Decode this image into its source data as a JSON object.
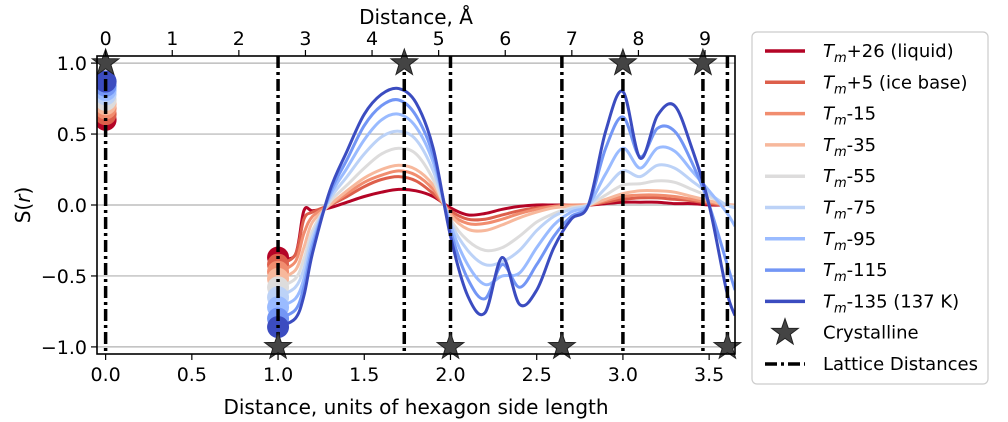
{
  "chart_data": {
    "type": "line",
    "xlabel": "Distance, units of hexagon side length",
    "x2label": "Distance, Å",
    "ylabel": "S(r)",
    "xlim": [
      -0.05,
      3.65
    ],
    "ylim": [
      -1.05,
      1.05
    ],
    "x2lim": [
      -0.13,
      9.45
    ],
    "xticks": [
      0.0,
      0.5,
      1.0,
      1.5,
      2.0,
      2.5,
      3.0,
      3.5
    ],
    "xtick_labels": [
      "0.0",
      "0.5",
      "1.0",
      "1.5",
      "2.0",
      "2.5",
      "3.0",
      "3.5"
    ],
    "yticks": [
      -1.0,
      -0.5,
      0.0,
      0.5,
      1.0
    ],
    "ytick_labels": [
      "−1.0",
      "−0.5",
      "0.0",
      "0.5",
      "1.0"
    ],
    "x2ticks": [
      0,
      1,
      2,
      3,
      4,
      5,
      6,
      7,
      8,
      9
    ],
    "x2tick_labels": [
      "0",
      "1",
      "2",
      "3",
      "4",
      "5",
      "6",
      "7",
      "8",
      "9"
    ],
    "grid": "horizontal",
    "legend_placement": "outside-right",
    "lattice_distances": [
      0.0,
      1.0,
      1.732,
      2.0,
      2.646,
      3.0,
      3.464,
      3.606
    ],
    "crystalline_points": [
      {
        "x": 0.0,
        "y": 1.0
      },
      {
        "x": 1.0,
        "y": -1.0
      },
      {
        "x": 1.732,
        "y": 1.0
      },
      {
        "x": 2.0,
        "y": -1.0
      },
      {
        "x": 2.646,
        "y": -1.0
      },
      {
        "x": 3.0,
        "y": 1.0
      },
      {
        "x": 3.464,
        "y": 1.0
      },
      {
        "x": 3.606,
        "y": -1.0
      }
    ],
    "series": [
      {
        "name_main": "T",
        "name_sub": "m",
        "name_rest": "+26 (liquid)",
        "color": "#b40426",
        "a": 0.6,
        "b": -0.37,
        "x": [
          1.0,
          1.1,
          1.15,
          1.2,
          1.3,
          1.4,
          1.5,
          1.6,
          1.7,
          1.8,
          1.9,
          2.0,
          2.1,
          2.2,
          2.3,
          2.4,
          2.5,
          2.6,
          2.7,
          2.8,
          2.9,
          3.0,
          3.1,
          3.2,
          3.3,
          3.4,
          3.5,
          3.6,
          3.65
        ],
        "y": [
          -0.37,
          -0.35,
          -0.04,
          -0.04,
          -0.02,
          0.02,
          0.06,
          0.09,
          0.11,
          0.1,
          0.06,
          -0.02,
          -0.07,
          -0.06,
          -0.03,
          -0.01,
          0.0,
          0.0,
          0.0,
          0.0,
          0.01,
          0.02,
          0.02,
          0.02,
          0.01,
          0.01,
          0.0,
          0.0,
          0.0
        ]
      },
      {
        "name_main": "T",
        "name_sub": "m",
        "name_rest": "+5 (ice base)",
        "color": "#dd5f4b",
        "a": 0.64,
        "b": -0.42,
        "x": [
          1.0,
          1.1,
          1.15,
          1.2,
          1.3,
          1.4,
          1.5,
          1.6,
          1.7,
          1.8,
          1.9,
          2.0,
          2.1,
          2.2,
          2.3,
          2.4,
          2.5,
          2.6,
          2.7,
          2.8,
          2.9,
          3.0,
          3.1,
          3.2,
          3.3,
          3.4,
          3.5,
          3.6,
          3.65
        ],
        "y": [
          -0.42,
          -0.35,
          -0.1,
          -0.05,
          0.0,
          0.06,
          0.13,
          0.18,
          0.2,
          0.17,
          0.08,
          -0.04,
          -0.1,
          -0.1,
          -0.07,
          -0.04,
          -0.02,
          -0.01,
          0.0,
          0.0,
          0.02,
          0.04,
          0.05,
          0.05,
          0.04,
          0.03,
          0.01,
          0.0,
          0.0
        ]
      },
      {
        "name_main": "T",
        "name_sub": "m",
        "name_rest": "-15",
        "color": "#f18d6f",
        "a": 0.68,
        "b": -0.47,
        "x": [
          1.0,
          1.1,
          1.15,
          1.2,
          1.3,
          1.4,
          1.5,
          1.6,
          1.7,
          1.8,
          1.9,
          2.0,
          2.1,
          2.2,
          2.3,
          2.4,
          2.5,
          2.6,
          2.7,
          2.8,
          2.9,
          3.0,
          3.1,
          3.2,
          3.3,
          3.4,
          3.5,
          3.6,
          3.65
        ],
        "y": [
          -0.47,
          -0.4,
          -0.2,
          -0.08,
          0.0,
          0.08,
          0.16,
          0.21,
          0.24,
          0.21,
          0.11,
          -0.06,
          -0.13,
          -0.13,
          -0.1,
          -0.06,
          -0.03,
          -0.01,
          0.0,
          0.0,
          0.03,
          0.06,
          0.07,
          0.07,
          0.06,
          0.04,
          0.02,
          0.0,
          0.0
        ]
      },
      {
        "name_main": "T",
        "name_sub": "m",
        "name_rest": "-35",
        "color": "#f7b89c",
        "a": 0.71,
        "b": -0.52,
        "x": [
          1.0,
          1.1,
          1.15,
          1.2,
          1.3,
          1.4,
          1.5,
          1.6,
          1.7,
          1.8,
          1.9,
          2.0,
          2.1,
          2.2,
          2.3,
          2.4,
          2.5,
          2.6,
          2.7,
          2.8,
          2.9,
          3.0,
          3.1,
          3.2,
          3.3,
          3.4,
          3.5,
          3.6,
          3.65
        ],
        "y": [
          -0.52,
          -0.46,
          -0.3,
          -0.12,
          0.0,
          0.1,
          0.19,
          0.25,
          0.28,
          0.25,
          0.14,
          -0.07,
          -0.17,
          -0.18,
          -0.14,
          -0.09,
          -0.05,
          -0.02,
          -0.01,
          0.0,
          0.04,
          0.08,
          0.1,
          0.1,
          0.09,
          0.06,
          0.03,
          0.0,
          0.0
        ]
      },
      {
        "name_main": "T",
        "name_sub": "m",
        "name_rest": "-55",
        "color": "#dddcdc",
        "a": 0.74,
        "b": -0.58,
        "x": [
          1.0,
          1.1,
          1.15,
          1.2,
          1.3,
          1.4,
          1.5,
          1.6,
          1.7,
          1.8,
          1.9,
          2.0,
          2.1,
          2.2,
          2.3,
          2.4,
          2.5,
          2.6,
          2.7,
          2.8,
          2.9,
          3.0,
          3.1,
          3.2,
          3.3,
          3.4,
          3.5,
          3.6,
          3.65
        ],
        "y": [
          -0.58,
          -0.52,
          -0.38,
          -0.18,
          0.02,
          0.14,
          0.26,
          0.36,
          0.4,
          0.36,
          0.18,
          -0.1,
          -0.25,
          -0.32,
          -0.3,
          -0.22,
          -0.12,
          -0.06,
          -0.02,
          0.0,
          0.07,
          0.14,
          0.15,
          0.17,
          0.16,
          0.11,
          0.06,
          0.0,
          -0.01
        ]
      },
      {
        "name_main": "T",
        "name_sub": "m",
        "name_rest": "-75",
        "color": "#bcd2f7",
        "a": 0.78,
        "b": -0.65,
        "x": [
          1.0,
          1.1,
          1.15,
          1.2,
          1.3,
          1.4,
          1.5,
          1.6,
          1.7,
          1.8,
          1.9,
          2.0,
          2.1,
          2.2,
          2.3,
          2.4,
          2.5,
          2.6,
          2.7,
          2.8,
          2.9,
          3.0,
          3.1,
          3.2,
          3.3,
          3.4,
          3.5,
          3.6,
          3.65
        ],
        "y": [
          -0.65,
          -0.58,
          -0.45,
          -0.22,
          0.04,
          0.2,
          0.36,
          0.48,
          0.52,
          0.46,
          0.24,
          -0.12,
          -0.32,
          -0.42,
          -0.4,
          -0.32,
          -0.18,
          -0.08,
          -0.03,
          0.0,
          0.12,
          0.24,
          0.2,
          0.28,
          0.26,
          0.17,
          0.08,
          0.0,
          -0.02
        ]
      },
      {
        "name_main": "T",
        "name_sub": "m",
        "name_rest": "-95",
        "color": "#9abbff",
        "a": 0.81,
        "b": -0.72,
        "x": [
          1.0,
          1.1,
          1.15,
          1.2,
          1.3,
          1.4,
          1.5,
          1.6,
          1.7,
          1.8,
          1.9,
          2.0,
          2.1,
          2.2,
          2.3,
          2.4,
          2.5,
          2.6,
          2.7,
          2.8,
          2.9,
          3.0,
          3.1,
          3.2,
          3.3,
          3.4,
          3.5,
          3.6,
          3.65
        ],
        "y": [
          -0.72,
          -0.66,
          -0.52,
          -0.26,
          0.06,
          0.26,
          0.46,
          0.6,
          0.64,
          0.55,
          0.3,
          -0.14,
          -0.42,
          -0.56,
          -0.5,
          -0.48,
          -0.3,
          -0.14,
          -0.05,
          0.0,
          0.22,
          0.4,
          0.26,
          0.4,
          0.38,
          0.24,
          0.1,
          -0.05,
          -0.15
        ]
      },
      {
        "name_main": "T",
        "name_sub": "m",
        "name_rest": "-115",
        "color": "#7396f5",
        "a": 0.84,
        "b": -0.8,
        "x": [
          1.0,
          1.1,
          1.15,
          1.2,
          1.3,
          1.4,
          1.5,
          1.6,
          1.7,
          1.8,
          1.9,
          2.0,
          2.1,
          2.2,
          2.3,
          2.4,
          2.5,
          2.6,
          2.7,
          2.8,
          2.9,
          3.0,
          3.1,
          3.2,
          3.3,
          3.4,
          3.5,
          3.6,
          3.65
        ],
        "y": [
          -0.8,
          -0.74,
          -0.58,
          -0.3,
          0.08,
          0.32,
          0.56,
          0.7,
          0.74,
          0.63,
          0.35,
          -0.18,
          -0.52,
          -0.66,
          -0.42,
          -0.58,
          -0.42,
          -0.22,
          -0.08,
          0.0,
          0.4,
          0.62,
          0.34,
          0.54,
          0.52,
          0.3,
          0.0,
          -0.4,
          -0.6
        ]
      },
      {
        "name_main": "T",
        "name_sub": "m",
        "name_rest": "-135 (137 K)",
        "color": "#3b4cc0",
        "a": 0.87,
        "b": -0.86,
        "x": [
          1.0,
          1.1,
          1.15,
          1.2,
          1.3,
          1.4,
          1.5,
          1.6,
          1.7,
          1.8,
          1.9,
          2.0,
          2.1,
          2.2,
          2.3,
          2.4,
          2.5,
          2.6,
          2.7,
          2.8,
          2.9,
          3.0,
          3.1,
          3.2,
          3.3,
          3.4,
          3.5,
          3.6,
          3.65
        ],
        "y": [
          -0.86,
          -0.8,
          -0.64,
          -0.34,
          0.1,
          0.38,
          0.64,
          0.78,
          0.82,
          0.72,
          0.4,
          -0.22,
          -0.64,
          -0.76,
          -0.37,
          -0.7,
          -0.6,
          -0.3,
          -0.1,
          0.0,
          0.52,
          0.8,
          0.33,
          0.63,
          0.7,
          0.4,
          0.0,
          -0.6,
          -0.78
        ]
      }
    ],
    "legend_extra": [
      {
        "label": "Crystalline"
      },
      {
        "label": "Lattice Distances"
      }
    ]
  }
}
